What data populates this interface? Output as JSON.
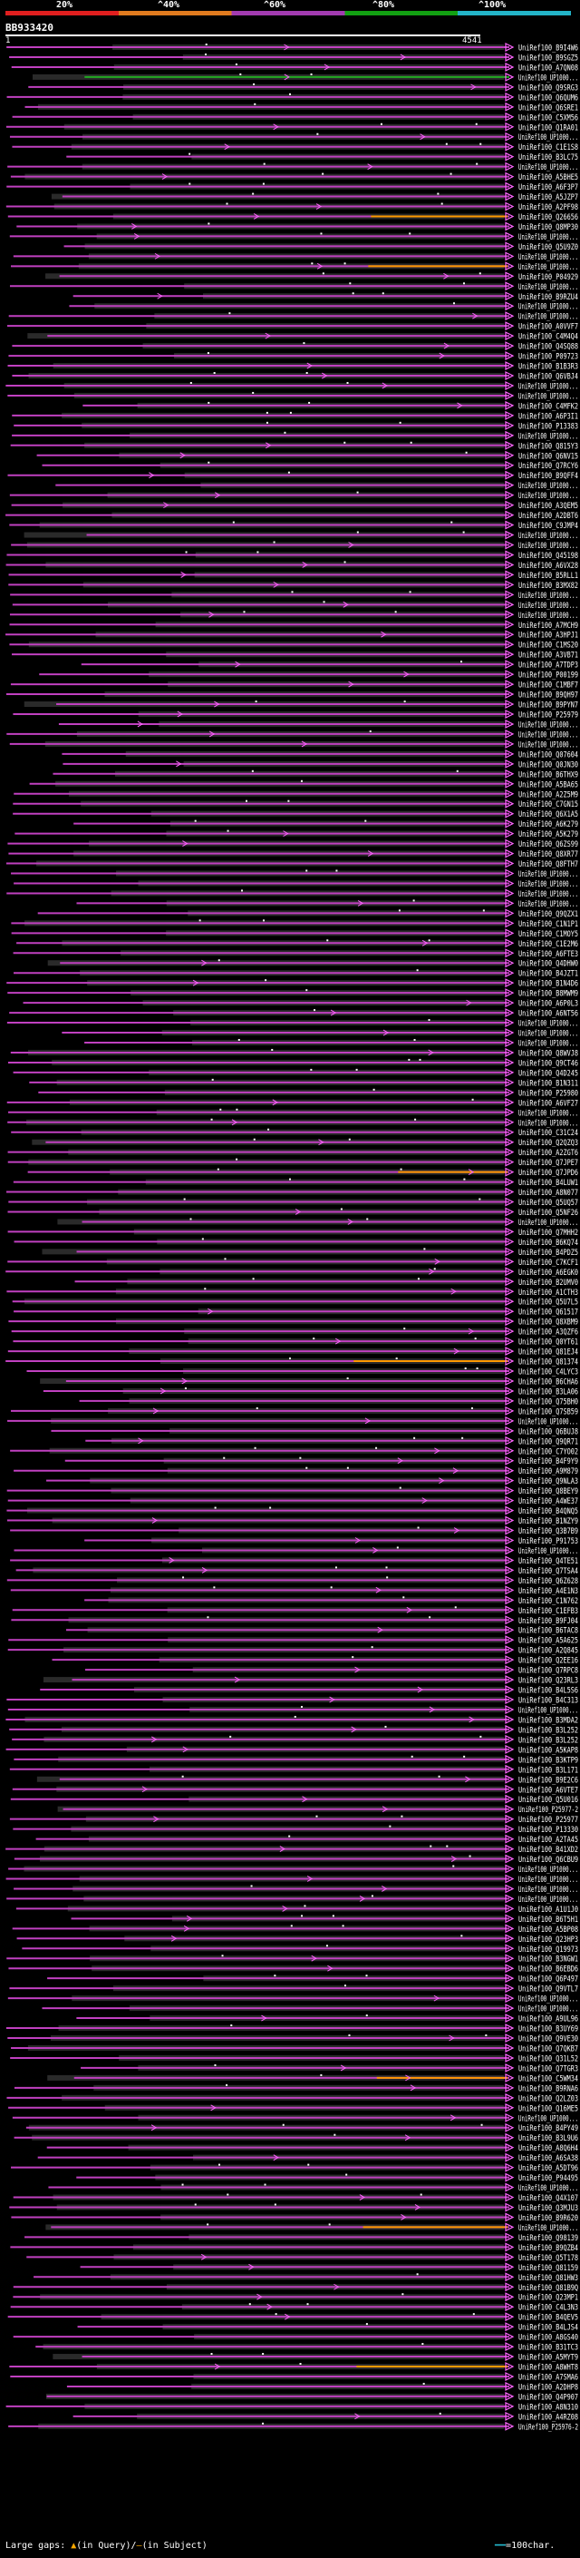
{
  "legend": {
    "ticks": [
      "20%",
      "^40%",
      "^60%",
      "^80%",
      "^100%"
    ],
    "colors": [
      "#e01f1f",
      "#e07b1f",
      "#a23bb0",
      "#12a012",
      "#23b4c8"
    ]
  },
  "query_id": "BB933420",
  "scale": {
    "start": "1",
    "end": "4541"
  },
  "hit_labels": [
    "UniRef100_B9I4W6",
    "UniRef100_B9SGZ5",
    "UniRef100_A7QN08",
    "UniRef100_UP1000...",
    "UniRef100_Q9SRG3",
    "UniRef100_Q6QUM6",
    "UniRef100_Q6SRE1",
    "UniRef100_C5XM56",
    "UniRef100_Q1RA01",
    "UniRef100_UP1000...",
    "UniRef100_C1E1S8",
    "UniRef100_B3LC75",
    "UniRef100_UP1000...",
    "UniRef100_A5BHE5",
    "UniRef100_A6F3P7",
    "UniRef100_A5JZP7",
    "UniRef100_A2PF98",
    "UniRef100_Q26656",
    "UniRef100_Q8MP30",
    "UniRef100_UP1000...",
    "UniRef100_Q5U9Z0",
    "UniRef100_UP1000...",
    "UniRef100_UP1000...",
    "UniRef100_P04929",
    "UniRef100_UP1000...",
    "UniRef100_B9RZU4",
    "UniRef100_UP1000...",
    "UniRef100_UP1000...",
    "UniRef100_A0VVF7",
    "UniRef100_C4M4Q4",
    "UniRef100_Q4SQ88",
    "UniRef100_P09723",
    "UniRef100_B1B3R3",
    "UniRef100_Q6VBJ4",
    "UniRef100_UP1000...",
    "UniRef100_UP1000...",
    "UniRef100_C4MFK2",
    "UniRef100_A6P3I1",
    "UniRef100_P13383",
    "UniRef100_UP1000...",
    "UniRef100_Q815Y3",
    "UniRef100_Q6NV15",
    "UniRef100_Q7RCY6",
    "UniRef100_B9QFF4",
    "UniRef100_UP1000...",
    "UniRef100_UP1000...",
    "UniRef100_A3QEM5",
    "UniRef100_A2DBT6",
    "UniRef100_C9JMP4",
    "UniRef100_UP1000...",
    "UniRef100_UP1000...",
    "UniRef100_Q45198",
    "UniRef100_A6VX28",
    "UniRef100_B5RLL1",
    "UniRef100_B3MX82",
    "UniRef100_UP1000...",
    "UniRef100_UP1000...",
    "UniRef100_UP1000...",
    "UniRef100_A7MCH9",
    "UniRef100_A3HPJ1",
    "UniRef100_C1MS20",
    "UniRef100_A3VB71",
    "UniRef100_A7TDP3",
    "UniRef100_P00199",
    "UniRef100_C1MBF7",
    "UniRef100_B9QH97",
    "UniRef100_B9PYN7",
    "UniRef100_P25979",
    "UniRef100_UP1000...",
    "UniRef100_UP1000...",
    "UniRef100_UP1000...",
    "UniRef100_Q07604",
    "UniRef100_Q0JN30",
    "UniRef100_B6THX9",
    "UniRef100_A5BA65",
    "UniRef100_A2Z5M9",
    "UniRef100_C7GN15",
    "UniRef100_Q6X1A5",
    "UniRef100_A6K279",
    "UniRef100_A5K279",
    "UniRef100_Q6ZS99",
    "UniRef100_Q8XR77",
    "UniRef100_Q8FTH7",
    "UniRef100_UP1000...",
    "UniRef100_UP1000...",
    "UniRef100_UP1000...",
    "UniRef100_UP1000...",
    "UniRef100_Q9QZX1",
    "UniRef100_C1N1P1",
    "UniRef100_C1MOY5",
    "UniRef100_C1E2M6",
    "UniRef100_A6FTE3",
    "UniRef100_Q4DHW0",
    "UniRef100_B4JZT1",
    "UniRef100_B1N4D6",
    "UniRef100_B8MWM9",
    "UniRef100_A6P0L3",
    "UniRef100_A6NT56",
    "UniRef100_UP1000...",
    "UniRef100_UP1000...",
    "UniRef100_UP1000...",
    "UniRef100_Q8WVJ8",
    "UniRef100_Q9CT46",
    "UniRef100_Q4D245",
    "UniRef100_B1N311",
    "UniRef100_P25980",
    "UniRef100_A6VF27",
    "UniRef100_UP1000...",
    "UniRef100_UP1000...",
    "UniRef100_C31C24",
    "UniRef100_Q2QZQ3",
    "UniRef100_A2ZGT6",
    "UniRef100_Q7JPE7",
    "UniRef100_Q7JPD6",
    "UniRef100_B4LUW1",
    "UniRef100_A8N077",
    "UniRef100_Q5UQ57",
    "UniRef100_Q5NF26",
    "UniRef100_UP1000...",
    "UniRef100_Q7MHH2",
    "UniRef100_B6KQ74",
    "UniRef100_B4PDZ5",
    "UniRef100_C7KCF1",
    "UniRef100_A6EGK0",
    "UniRef100_B2UMV0",
    "UniRef100_A1CTH3",
    "UniRef100_Q5U7L5",
    "UniRef100_Q61517",
    "UniRef100_Q8XBM9",
    "UniRef100_A3QZF6",
    "UniRef100_Q0YT61",
    "UniRef100_Q81EJ4",
    "UniRef100_Q81374",
    "UniRef100_C4LYC3",
    "UniRef100_B6CHA6",
    "UniRef100_B3LA06",
    "UniRef100_Q75BH0",
    "UniRef100_Q7SB59",
    "UniRef100_UP1000...",
    "UniRef100_Q6BUJ8",
    "UniRef100_Q9QR71",
    "UniRef100_C7YO02",
    "UniRef100_B4F9Y9",
    "UniRef100_A9M879",
    "UniRef100_Q9NLA3",
    "UniRef100_Q8BEY9",
    "UniRef100_A4WE37",
    "UniRef100_B4QNQ5",
    "UniRef100_B1NZY9",
    "UniRef100_Q3B7B9",
    "UniRef100_P91753",
    "UniRef100_UP1000...",
    "UniRef100_Q4TE51",
    "UniRef100_Q7TSA4",
    "UniRef100_Q6Z628",
    "UniRef100_A4E1N3",
    "UniRef100_C1N762",
    "UniRef100_C1EFB3",
    "UniRef100_B9FJ04",
    "UniRef100_B6TAC8",
    "UniRef100_A5A625",
    "UniRef100_A2Q845",
    "UniRef100_Q2EE16",
    "UniRef100_Q7RPC8",
    "UniRef100_Q23RL3",
    "UniRef100_B4L5S6",
    "UniRef100_B4C313",
    "UniRef100_UP1000...",
    "UniRef100_B3MDA2",
    "UniRef100_B3L252",
    "UniRef100_B3L252",
    "UniRef100_A5KAP8",
    "UniRef100_B3KTP9",
    "UniRef100_B3L171",
    "UniRef100_B9E2C6",
    "UniRef100_A6VTE7",
    "UniRef100_Q5U016",
    "UniRef100_P25977-2",
    "UniRef100_P25977",
    "UniRef100_P13330",
    "UniRef100_A2TA45",
    "UniRef100_B41XD2",
    "UniRef100_Q6CBU9",
    "UniRef100_UP1000...",
    "UniRef100_UP1000...",
    "UniRef100_UP1000...",
    "UniRef100_UP1000...",
    "UniRef100_A1U1J0",
    "UniRef100_B6T5H1",
    "UniRef100_A5BP08",
    "UniRef100_Q23HP3",
    "UniRef100_Q19973",
    "UniRef100_B3NGW1",
    "UniRef100_B6EBD6",
    "UniRef100_Q6P497",
    "UniRef100_Q9VTL7",
    "UniRef100_UP1000...",
    "UniRef100_UP1000...",
    "UniRef100_A9UL96",
    "UniRef100_B3UY69",
    "UniRef100_Q9VE30",
    "UniRef100_Q7QKB7",
    "UniRef100_Q31L52",
    "UniRef100_Q7TGR3",
    "UniRef100_C5WM34",
    "UniRef100_B9RNA6",
    "UniRef100_Q2LZ03",
    "UniRef100_Q16ME5",
    "UniRef100_UP1000...",
    "UniRef100_B4PY49",
    "UniRef100_B3L9U6",
    "UniRef100_A8Q6H4",
    "UniRef100_A6SA38",
    "UniRef100_A5DT96",
    "UniRef100_P94495",
    "UniRef100_UP1000...",
    "UniRef100_Q4X107",
    "UniRef100_Q3MJU3",
    "UniRef100_B9R620",
    "UniRef100_UP1000...",
    "UniRef100_Q98139",
    "UniRef100_B9QZB4",
    "UniRef100_Q5T178",
    "UniRef100_Q81159",
    "UniRef100_Q81HW3",
    "UniRef100_Q81B9Q",
    "UniRef100_Q23MP1",
    "UniRef100_C4L3N3",
    "UniRef100_B4QEV5",
    "UniRef100_B4LJS4",
    "UniRef100_A8GS40",
    "UniRef100_B31TC3",
    "UniRef100_A5MYT9",
    "UniRef100_A8WHT8",
    "UniRef100_A7SMA6",
    "UniRef100_A2DHP8",
    "UniRef100_Q4P907",
    "UniRef100_A8N310",
    "UniRef100_A4RZ08",
    "UniRef100_P25976-2"
  ],
  "footer": {
    "gaps_text": "Large gaps:",
    "query_gap": "(in Query)/",
    "subject_gap": "(in Subject)",
    "scale_text": "=100char."
  }
}
